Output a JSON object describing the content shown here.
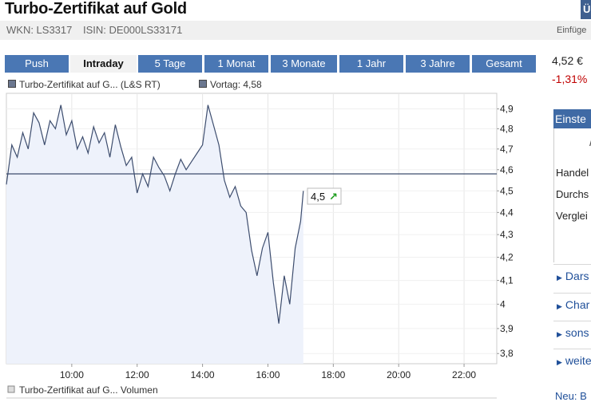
{
  "header": {
    "title": "Turbo-Zertifikat auf Gold",
    "wkn": "WKN: LS3317",
    "isin": "ISIN: DE000LS33171",
    "insert_label": "Einfüge",
    "corner_label": "Ü"
  },
  "tabs": [
    {
      "label": "Push",
      "active": false
    },
    {
      "label": "Intraday",
      "active": true
    },
    {
      "label": "5 Tage",
      "active": false
    },
    {
      "label": "1 Monat",
      "active": false
    },
    {
      "label": "3 Monate",
      "active": false
    },
    {
      "label": "1 Jahr",
      "active": false
    },
    {
      "label": "3 Jahre",
      "active": false
    },
    {
      "label": "Gesamt",
      "active": false
    }
  ],
  "legend": {
    "series_label": "Turbo-Zertifikat auf G... (L&S RT)",
    "vortag_label": "Vortag: 4,58",
    "volume_label": "Turbo-Zertifikat auf G... Volumen"
  },
  "sidebar": {
    "price": "4,52 €",
    "change": "-1,31%",
    "header": "Einste",
    "labels": [
      "Handel",
      "Durchs",
      "Verglei"
    ],
    "links": [
      "Dars",
      "Char",
      "sons",
      "weite"
    ],
    "footer_link": "Neu: B"
  },
  "chart_data": {
    "type": "line",
    "title": "",
    "xlabel": "",
    "ylabel": "",
    "x_ticks": [
      "10:00",
      "12:00",
      "14:00",
      "16:00",
      "18:00",
      "20:00",
      "22:00"
    ],
    "y_ticks": [
      "3,8",
      "3,9",
      "4",
      "4,1",
      "4,2",
      "4,3",
      "4,4",
      "4,5",
      "4,6",
      "4,7",
      "4,8",
      "4,9"
    ],
    "xlim": [
      "08:00",
      "23:00"
    ],
    "ylim": [
      3.76,
      4.98
    ],
    "y_scale": "log",
    "reference_line": {
      "name": "Vortag",
      "value": 4.58
    },
    "last_value_label": "4,5",
    "grid": true,
    "series": [
      {
        "name": "Turbo-Zertifikat auf G... (L&S RT)",
        "color": "#3d4d6e",
        "fill": "#eef2fb",
        "points": [
          [
            "08:00",
            4.53
          ],
          [
            "08:10",
            4.72
          ],
          [
            "08:20",
            4.66
          ],
          [
            "08:30",
            4.78
          ],
          [
            "08:40",
            4.7
          ],
          [
            "08:50",
            4.88
          ],
          [
            "09:00",
            4.83
          ],
          [
            "09:10",
            4.72
          ],
          [
            "09:20",
            4.84
          ],
          [
            "09:30",
            4.8
          ],
          [
            "09:40",
            4.92
          ],
          [
            "09:50",
            4.77
          ],
          [
            "10:00",
            4.84
          ],
          [
            "10:10",
            4.7
          ],
          [
            "10:20",
            4.76
          ],
          [
            "10:30",
            4.68
          ],
          [
            "10:40",
            4.81
          ],
          [
            "10:50",
            4.73
          ],
          [
            "11:00",
            4.78
          ],
          [
            "11:10",
            4.66
          ],
          [
            "11:20",
            4.82
          ],
          [
            "11:30",
            4.71
          ],
          [
            "11:40",
            4.62
          ],
          [
            "11:50",
            4.66
          ],
          [
            "12:00",
            4.49
          ],
          [
            "12:10",
            4.58
          ],
          [
            "12:20",
            4.52
          ],
          [
            "12:30",
            4.66
          ],
          [
            "12:40",
            4.61
          ],
          [
            "12:50",
            4.57
          ],
          [
            "13:00",
            4.5
          ],
          [
            "13:10",
            4.58
          ],
          [
            "13:20",
            4.65
          ],
          [
            "13:30",
            4.6
          ],
          [
            "13:40",
            4.64
          ],
          [
            "13:50",
            4.68
          ],
          [
            "14:00",
            4.72
          ],
          [
            "14:10",
            4.92
          ],
          [
            "14:20",
            4.82
          ],
          [
            "14:30",
            4.72
          ],
          [
            "14:40",
            4.55
          ],
          [
            "14:50",
            4.47
          ],
          [
            "15:00",
            4.52
          ],
          [
            "15:10",
            4.43
          ],
          [
            "15:20",
            4.4
          ],
          [
            "15:30",
            4.23
          ],
          [
            "15:40",
            4.12
          ],
          [
            "15:50",
            4.24
          ],
          [
            "16:00",
            4.31
          ],
          [
            "16:10",
            4.09
          ],
          [
            "16:20",
            3.92
          ],
          [
            "16:30",
            4.12
          ],
          [
            "16:40",
            4.0
          ],
          [
            "16:50",
            4.24
          ],
          [
            "17:00",
            4.36
          ],
          [
            "17:05",
            4.5
          ]
        ]
      },
      {
        "name": "Turbo-Zertifikat auf G... Volumen",
        "color": "#dddddd",
        "points": []
      }
    ]
  }
}
